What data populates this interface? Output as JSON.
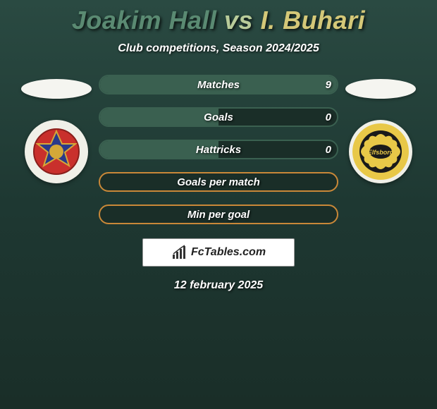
{
  "title": {
    "player1": "Joakim Hall",
    "vs": "vs",
    "player2": "I. Buhari",
    "player1_color": "#5a8a72",
    "vs_color": "#b8cc9a",
    "player2_color": "#d4c878"
  },
  "subtitle": "Club competitions, Season 2024/2025",
  "stats": [
    {
      "label": "Matches",
      "value": "9",
      "mode": "split",
      "left_fill_pct": 100
    },
    {
      "label": "Goals",
      "value": "0",
      "mode": "split",
      "left_fill_pct": 50
    },
    {
      "label": "Hattricks",
      "value": "0",
      "mode": "split",
      "left_fill_pct": 50
    },
    {
      "label": "Goals per match",
      "value": "",
      "mode": "empty",
      "left_fill_pct": 0
    },
    {
      "label": "Min per goal",
      "value": "",
      "mode": "empty",
      "left_fill_pct": 0
    }
  ],
  "footer_brand": "FcTables.com",
  "date": "12 february 2025",
  "colors": {
    "pill_fill": "#3a6050",
    "pill_split_border": "#3a6050",
    "pill_empty_border": "#c98838",
    "background_top": "#2a4a42",
    "background_bottom": "#1a2e28"
  }
}
